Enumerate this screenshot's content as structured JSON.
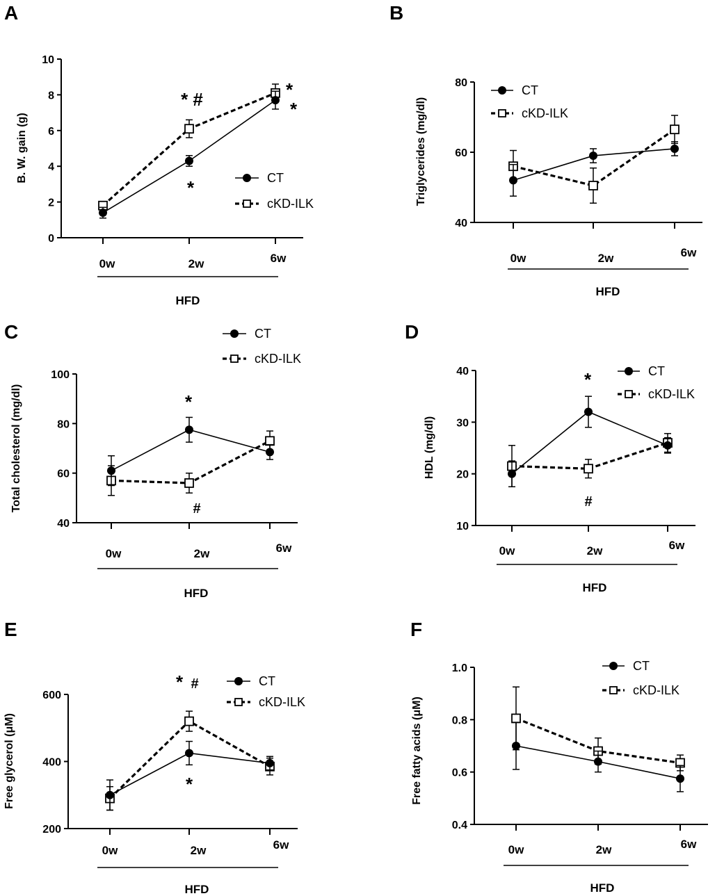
{
  "chart_data": [
    {
      "panel": "A",
      "type": "line",
      "categories": [
        "0w",
        "2w",
        "6w"
      ],
      "group_label": "HFD",
      "ylabel": "B. W. gain (g)",
      "ylim": [
        0,
        10
      ],
      "yticks": [
        "0",
        "2",
        "4",
        "6",
        "8",
        "10"
      ],
      "legend_position": "right",
      "series": [
        {
          "name": "CT",
          "values": [
            1.4,
            4.3,
            7.7
          ],
          "errors": [
            0.3,
            0.3,
            0.5
          ]
        },
        {
          "name": "cKD-ILK",
          "values": [
            1.8,
            6.1,
            8.1
          ],
          "errors": [
            0.2,
            0.5,
            0.5
          ]
        }
      ],
      "annotations": [
        "* #",
        "*",
        "*",
        "*"
      ]
    },
    {
      "panel": "B",
      "type": "line",
      "categories": [
        "0w",
        "2w",
        "6w"
      ],
      "group_label": "HFD",
      "ylabel": "Triglycerides (mg/dl)",
      "ylim": [
        40,
        80
      ],
      "yticks": [
        "40",
        "60",
        "80"
      ],
      "legend_position": "top-left",
      "series": [
        {
          "name": "CT",
          "values": [
            52,
            59,
            61
          ],
          "errors": [
            4.5,
            2,
            2
          ]
        },
        {
          "name": "cKD-ILK",
          "values": [
            56,
            50.5,
            66.5
          ],
          "errors": [
            4.5,
            5,
            4
          ]
        }
      ],
      "annotations": []
    },
    {
      "panel": "C",
      "type": "line",
      "categories": [
        "0w",
        "2w",
        "6w"
      ],
      "group_label": "HFD",
      "ylabel": "Total cholesterol (mg/dl)",
      "ylim": [
        40,
        100
      ],
      "yticks": [
        "40",
        "60",
        "80",
        "100"
      ],
      "legend_position": "top-right",
      "series": [
        {
          "name": "CT",
          "values": [
            61,
            77.5,
            68.5
          ],
          "errors": [
            6,
            5,
            3
          ]
        },
        {
          "name": "cKD-ILK",
          "values": [
            57,
            56,
            73
          ],
          "errors": [
            6,
            4,
            4
          ]
        }
      ],
      "annotations": [
        "*",
        "#"
      ]
    },
    {
      "panel": "D",
      "type": "line",
      "categories": [
        "0w",
        "2w",
        "6w"
      ],
      "group_label": "HFD",
      "ylabel": "HDL (mg/dl)",
      "ylim": [
        10,
        40
      ],
      "yticks": [
        "10",
        "20",
        "30",
        "40"
      ],
      "legend_position": "top-right",
      "series": [
        {
          "name": "CT",
          "values": [
            20,
            32,
            25.5
          ],
          "errors": [
            2.5,
            3,
            1.5
          ]
        },
        {
          "name": "cKD-ILK",
          "values": [
            21.5,
            21,
            26
          ],
          "errors": [
            4,
            1.8,
            1.8
          ]
        }
      ],
      "annotations": [
        "*",
        "#"
      ]
    },
    {
      "panel": "E",
      "type": "line",
      "categories": [
        "0w",
        "2w",
        "6w"
      ],
      "group_label": "HFD",
      "ylabel": "Free glycerol (μM)",
      "ylim": [
        200,
        600
      ],
      "yticks": [
        "200",
        "400",
        "600"
      ],
      "legend_position": "top-right",
      "series": [
        {
          "name": "CT",
          "values": [
            300,
            425,
            395
          ],
          "errors": [
            45,
            35,
            20
          ]
        },
        {
          "name": "cKD-ILK",
          "values": [
            290,
            520,
            385
          ],
          "errors": [
            35,
            30,
            25
          ]
        }
      ],
      "annotations": [
        "*",
        "#",
        "*"
      ]
    },
    {
      "panel": "F",
      "type": "line",
      "categories": [
        "0w",
        "2w",
        "6w"
      ],
      "group_label": "HFD",
      "ylabel": "Free fatty acids (μM)",
      "ylim": [
        0.4,
        1.0
      ],
      "yticks": [
        "0.4",
        "0.6",
        "0.8",
        "1.0"
      ],
      "legend_position": "top-right",
      "series": [
        {
          "name": "CT",
          "values": [
            0.7,
            0.64,
            0.575
          ],
          "errors": [
            0.09,
            0.04,
            0.05
          ]
        },
        {
          "name": "cKD-ILK",
          "values": [
            0.805,
            0.68,
            0.635
          ],
          "errors": [
            0.12,
            0.05,
            0.03
          ]
        }
      ],
      "annotations": []
    }
  ]
}
